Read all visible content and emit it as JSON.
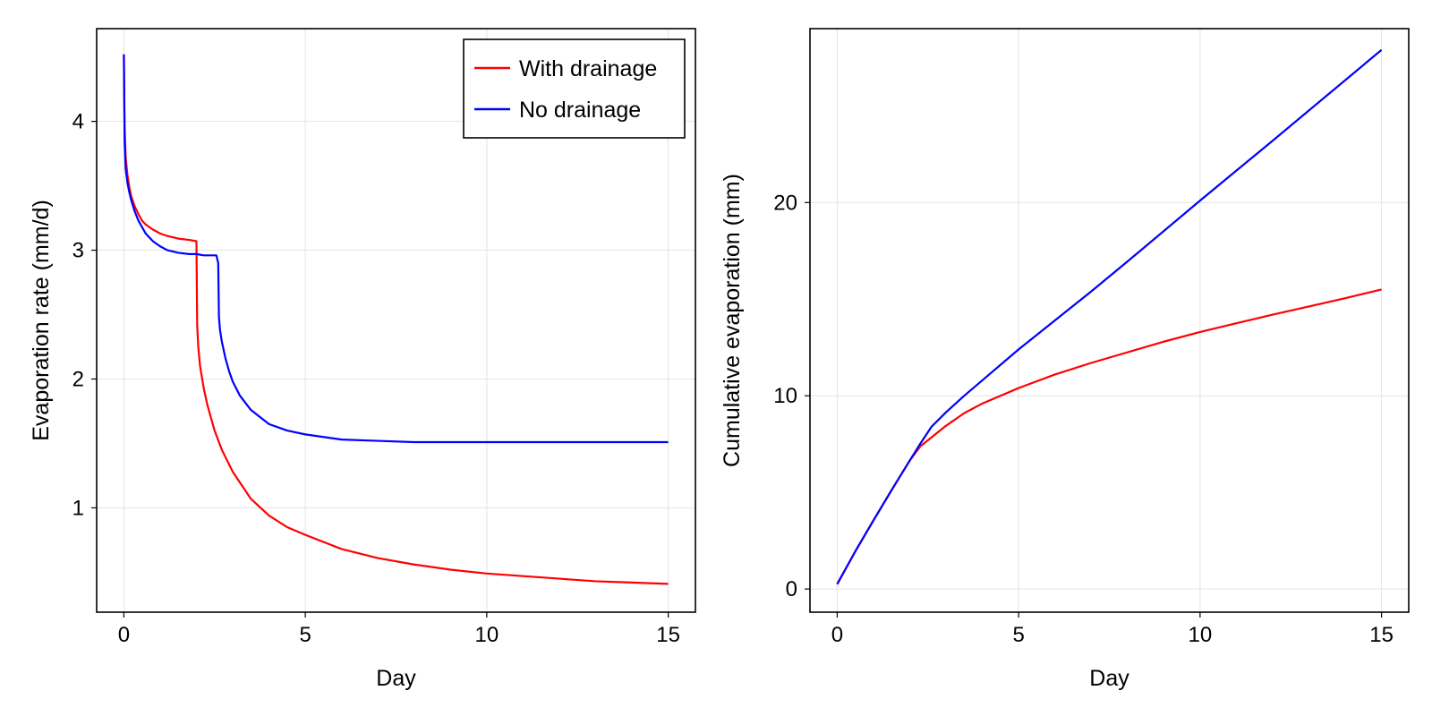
{
  "chart_data": [
    {
      "type": "line",
      "title": "",
      "xlabel": "Day",
      "ylabel": "Evaporation rate (mm/d)",
      "xlim": [
        -0.75,
        15.75
      ],
      "ylim": [
        0.19,
        4.72
      ],
      "xticks": [
        0,
        5,
        10,
        15
      ],
      "yticks": [
        1,
        2,
        3,
        4
      ],
      "grid": true,
      "legend": "top-right",
      "series": [
        {
          "name": "With drainage",
          "color": "#ff0000",
          "x": [
            0,
            0.02,
            0.05,
            0.1,
            0.15,
            0.2,
            0.3,
            0.4,
            0.5,
            0.6,
            0.8,
            1.0,
            1.2,
            1.5,
            1.8,
            2.0,
            2.02,
            2.05,
            2.1,
            2.2,
            2.3,
            2.5,
            2.7,
            3.0,
            3.5,
            4.0,
            4.5,
            5.0,
            6.0,
            7.0,
            8.0,
            9.0,
            10.0,
            11.0,
            12.0,
            13.0,
            14.0,
            15.0
          ],
          "y": [
            4.52,
            3.95,
            3.72,
            3.58,
            3.49,
            3.42,
            3.34,
            3.28,
            3.23,
            3.2,
            3.16,
            3.13,
            3.11,
            3.09,
            3.08,
            3.07,
            2.42,
            2.25,
            2.1,
            1.93,
            1.8,
            1.6,
            1.45,
            1.28,
            1.07,
            0.94,
            0.85,
            0.79,
            0.68,
            0.61,
            0.56,
            0.52,
            0.49,
            0.47,
            0.45,
            0.43,
            0.42,
            0.41
          ]
        },
        {
          "name": "No drainage",
          "color": "#0000ff",
          "x": [
            0,
            0.02,
            0.05,
            0.1,
            0.15,
            0.2,
            0.3,
            0.4,
            0.5,
            0.6,
            0.8,
            1.0,
            1.2,
            1.5,
            1.8,
            2.0,
            2.2,
            2.5,
            2.55,
            2.6,
            2.62,
            2.65,
            2.7,
            2.8,
            2.9,
            3.0,
            3.2,
            3.5,
            4.0,
            4.5,
            5.0,
            6.0,
            7.0,
            8.0,
            10.0,
            12.0,
            15.0
          ],
          "y": [
            4.52,
            3.85,
            3.63,
            3.52,
            3.45,
            3.39,
            3.3,
            3.23,
            3.18,
            3.13,
            3.07,
            3.03,
            3.0,
            2.98,
            2.97,
            2.97,
            2.96,
            2.96,
            2.96,
            2.9,
            2.48,
            2.38,
            2.29,
            2.16,
            2.06,
            1.98,
            1.87,
            1.76,
            1.65,
            1.6,
            1.57,
            1.53,
            1.52,
            1.51,
            1.51,
            1.51,
            1.51
          ]
        }
      ]
    },
    {
      "type": "line",
      "title": "",
      "xlabel": "Day",
      "ylabel": "Cumulative evaporation (mm)",
      "xlim": [
        -0.75,
        15.75
      ],
      "ylim": [
        -1.2,
        29.0
      ],
      "xticks": [
        0,
        5,
        10,
        15
      ],
      "yticks": [
        0,
        10,
        20
      ],
      "grid": true,
      "series": [
        {
          "color": "#ff0000",
          "x": [
            0,
            0.5,
            1.0,
            1.5,
            2.0,
            2.3,
            2.6,
            3.0,
            3.5,
            4.0,
            5.0,
            6.0,
            7.0,
            8.0,
            9.0,
            10.0,
            11.0,
            12.0,
            13.0,
            14.0,
            15.0
          ],
          "y": [
            0.25,
            1.95,
            3.55,
            5.12,
            6.65,
            7.4,
            7.85,
            8.45,
            9.1,
            9.6,
            10.4,
            11.1,
            11.7,
            12.25,
            12.8,
            13.3,
            13.75,
            14.2,
            14.62,
            15.05,
            15.5
          ]
        },
        {
          "color": "#0000ff",
          "x": [
            0,
            0.5,
            1.0,
            1.5,
            2.0,
            2.3,
            2.6,
            3.0,
            3.5,
            4.0,
            5.0,
            6.0,
            7.0,
            8.0,
            10.0,
            12.0,
            15.0
          ],
          "y": [
            0.25,
            1.95,
            3.55,
            5.12,
            6.65,
            7.55,
            8.4,
            9.15,
            10.0,
            10.8,
            12.4,
            13.9,
            15.4,
            16.95,
            20.1,
            23.2,
            27.9
          ]
        }
      ]
    }
  ]
}
